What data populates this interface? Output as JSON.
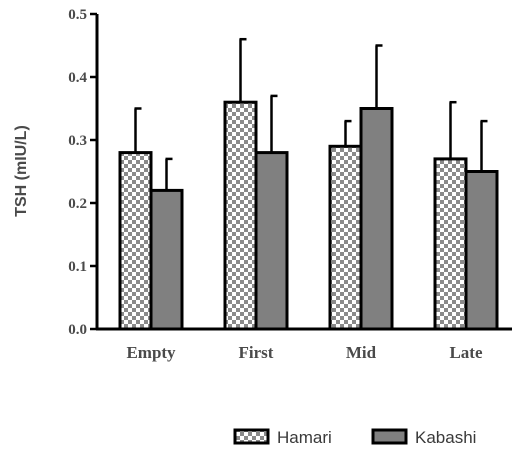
{
  "chart_data": {
    "type": "bar",
    "categories": [
      "Empty",
      "First",
      "Mid",
      "Late"
    ],
    "series": [
      {
        "name": "Hamari",
        "values": [
          0.28,
          0.36,
          0.29,
          0.27
        ],
        "error_upper": [
          0.35,
          0.46,
          0.33,
          0.36
        ],
        "fill": "checkerboard"
      },
      {
        "name": "Kabashi",
        "values": [
          0.22,
          0.28,
          0.35,
          0.25
        ],
        "error_upper": [
          0.27,
          0.37,
          0.45,
          0.33
        ],
        "fill": "#808080"
      }
    ],
    "ylabel": "TSH (mIU/L)",
    "xlabel": "",
    "ylim": [
      0,
      0.5
    ],
    "yticks": [
      "0.0",
      "0.1",
      "0.2",
      "0.3",
      "0.4",
      "0.5"
    ],
    "legend_position": "bottom-right",
    "grid": false
  },
  "colors": {
    "axis": "#000000",
    "text": "#4a4a4a",
    "kabashi_fill": "#808080",
    "checker_light": "#ffffff",
    "checker_dark": "#8a8a8a"
  }
}
